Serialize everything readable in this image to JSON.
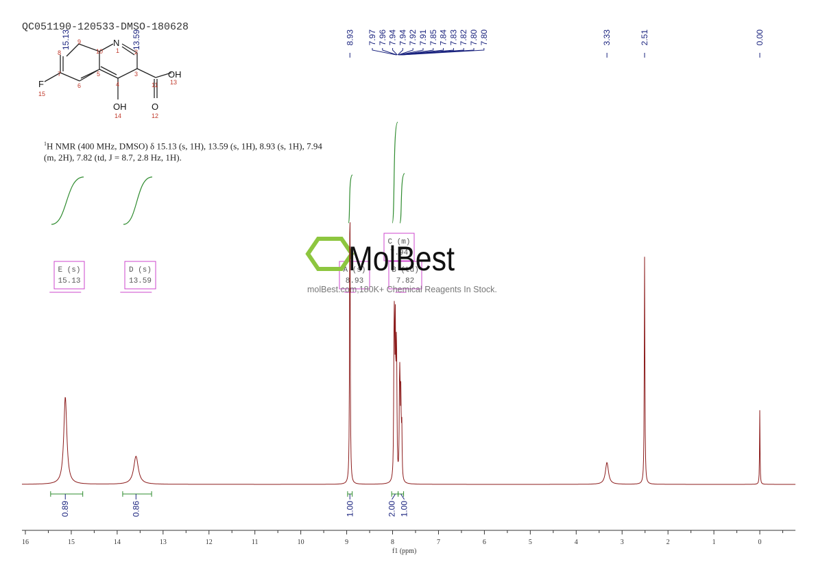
{
  "title": "QC051190-120533-DMSO-180628",
  "structure": {
    "atoms": [
      "N",
      "OH",
      "OH",
      "O",
      "F"
    ],
    "atom_numbers": [
      "1",
      "2",
      "3",
      "4",
      "5",
      "6",
      "7",
      "8",
      "9",
      "10",
      "11",
      "12",
      "13",
      "14",
      "15"
    ]
  },
  "description_line1": "H NMR (400 MHz, DMSO) δ 15.13 (s, 1H), 13.59 (s, 1H), 8.93 (s, 1H), 7.94",
  "description_sup": "1",
  "description_line2": "(m, 2H), 7.82 (td, J = 8.7, 2.8 Hz, 1H).",
  "watermark": {
    "brand": "MolBest",
    "tagline": "molBest.com,180K+ Chemical Reagents In Stock.",
    "color": "#8dc63f"
  },
  "colors": {
    "spectrum": "#8b1a1a",
    "integral": "#2e8b2e",
    "peak_label": "#1a237e",
    "multiplet_box": "#cc44cc"
  },
  "chart_data": {
    "type": "line",
    "xlabel": "f1 (ppm)",
    "xlim": [
      16.07,
      -0.78
    ],
    "x_reversed": true,
    "x_ticks": [
      "16",
      "15",
      "14",
      "13",
      "12",
      "11",
      "10",
      "9",
      "8",
      "7",
      "6",
      "5",
      "4",
      "3",
      "2",
      "1",
      "0"
    ],
    "grid": false,
    "peaks": [
      {
        "ppm": 15.13,
        "rel_height": 0.28,
        "width": 0.04
      },
      {
        "ppm": 13.59,
        "rel_height": 0.09,
        "width": 0.06
      },
      {
        "ppm": 8.93,
        "rel_height": 1.0,
        "width": 0.008
      },
      {
        "ppm": 7.97,
        "rel_height": 0.3,
        "width": 0.008
      },
      {
        "ppm": 7.96,
        "rel_height": 0.4,
        "width": 0.008
      },
      {
        "ppm": 7.94,
        "rel_height": 0.44,
        "width": 0.008
      },
      {
        "ppm": 7.92,
        "rel_height": 0.3,
        "width": 0.008
      },
      {
        "ppm": 7.91,
        "rel_height": 0.25,
        "width": 0.008
      },
      {
        "ppm": 7.85,
        "rel_height": 0.2,
        "width": 0.008
      },
      {
        "ppm": 7.84,
        "rel_height": 0.27,
        "width": 0.008
      },
      {
        "ppm": 7.82,
        "rel_height": 0.25,
        "width": 0.008
      },
      {
        "ppm": 7.8,
        "rel_height": 0.17,
        "width": 0.008
      },
      {
        "ppm": 3.33,
        "rel_height": 0.07,
        "width": 0.04
      },
      {
        "ppm": 2.51,
        "rel_height": 0.73,
        "width": 0.008
      },
      {
        "ppm": 0.0,
        "rel_height": 0.24,
        "width": 0.006
      }
    ],
    "peak_labels": [
      "15.13",
      "13.59",
      "8.93",
      "7.97",
      "7.96",
      "7.94",
      "7.94",
      "7.92",
      "7.91",
      "7.85",
      "7.84",
      "7.83",
      "7.82",
      "7.80",
      "7.80",
      "3.33",
      "2.51",
      "0.00"
    ],
    "integrals": [
      {
        "from": 15.45,
        "to": 14.75,
        "center": 15.13,
        "value": "0.89"
      },
      {
        "from": 13.88,
        "to": 13.25,
        "center": 13.59,
        "value": "0.86"
      },
      {
        "from": 8.98,
        "to": 8.88,
        "center": 8.93,
        "value": "1.00"
      },
      {
        "from": 8.02,
        "to": 7.88,
        "center": 7.94,
        "value": "2.00"
      },
      {
        "from": 7.88,
        "to": 7.76,
        "center": 7.82,
        "value": "1.00"
      }
    ],
    "multiplets": [
      {
        "label": "E (s)",
        "shift": "15.13"
      },
      {
        "label": "D (s)",
        "shift": "13.59"
      },
      {
        "label": "A (s)",
        "shift": "8.93"
      },
      {
        "label": "C (m)",
        "shift": "7.94"
      },
      {
        "label": "B (td)",
        "shift": "7.82"
      }
    ]
  }
}
